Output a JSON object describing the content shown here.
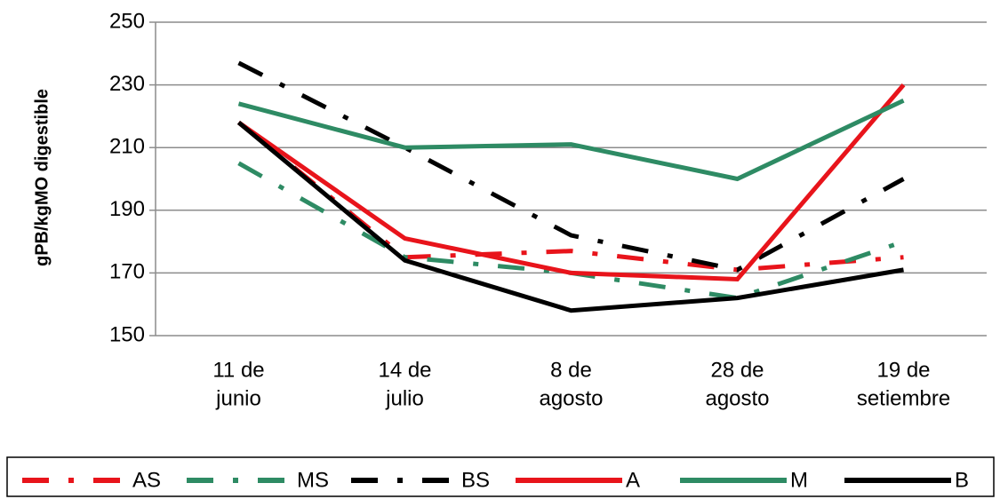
{
  "chart_data": {
    "type": "line",
    "y_label": "gPB/kgMO digestible",
    "categories": [
      [
        "11 de",
        "junio"
      ],
      [
        "14 de",
        "julio"
      ],
      [
        "8 de",
        "agosto"
      ],
      [
        "28 de",
        "agosto"
      ],
      [
        "19 de",
        "setiembre"
      ]
    ],
    "series": [
      {
        "name": "AS",
        "color": "#e8141b",
        "dash": "dashdot",
        "values": [
          218,
          175,
          177,
          171,
          175
        ]
      },
      {
        "name": "MS",
        "color": "#2e8b64",
        "dash": "dashdot",
        "values": [
          205,
          175,
          170,
          162,
          180
        ]
      },
      {
        "name": "BS",
        "color": "#000000",
        "dash": "dashdot",
        "values": [
          237,
          210,
          182,
          171,
          200
        ]
      },
      {
        "name": "A",
        "color": "#e8141b",
        "dash": "solid",
        "values": [
          218,
          181,
          170,
          168,
          230
        ]
      },
      {
        "name": "M",
        "color": "#2e8b64",
        "dash": "solid",
        "values": [
          224,
          210,
          211,
          200,
          225
        ]
      },
      {
        "name": "B",
        "color": "#000000",
        "dash": "solid",
        "values": [
          218,
          174,
          158,
          162,
          171
        ]
      }
    ],
    "ylim": [
      150,
      250
    ],
    "yticks": [
      150,
      170,
      190,
      210,
      230,
      250
    ],
    "grid": true,
    "legend": "bottom"
  }
}
